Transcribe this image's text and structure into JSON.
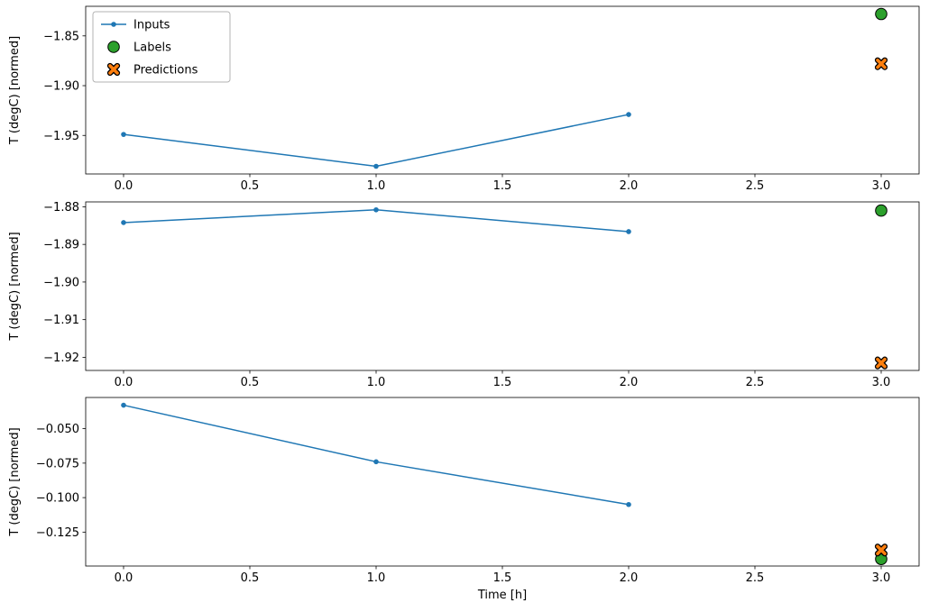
{
  "figure": {
    "background": "#ffffff",
    "xlabel": "Time [h]",
    "ylabel": "T (degC) [normed]"
  },
  "colors": {
    "inputs": "#1f77b4",
    "labels": "#2ca02c",
    "predictions": "#ff7f0e",
    "axes": "#000000",
    "legend_border": "#b3b3b3"
  },
  "legend": {
    "entries": [
      "Inputs",
      "Labels",
      "Predictions"
    ],
    "position": "upper left"
  },
  "chart_data": [
    {
      "type": "line",
      "title": "",
      "xlabel": "",
      "ylabel": "T (degC) [normed]",
      "xlim": [
        -0.15,
        3.15
      ],
      "ylim": [
        -1.9887,
        -1.8203
      ],
      "grid": false,
      "legend": true,
      "legend_loc": "upper left",
      "x_ticks": [
        {
          "value": 0.0,
          "label": "0.0"
        },
        {
          "value": 0.5,
          "label": "0.5"
        },
        {
          "value": 1.0,
          "label": "1.0"
        },
        {
          "value": 1.5,
          "label": "1.5"
        },
        {
          "value": 2.0,
          "label": "2.0"
        },
        {
          "value": 2.5,
          "label": "2.5"
        },
        {
          "value": 3.0,
          "label": "3.0"
        }
      ],
      "y_ticks": [
        {
          "value": -1.85,
          "label": "−1.85"
        },
        {
          "value": -1.9,
          "label": "−1.90"
        },
        {
          "value": -1.95,
          "label": "−1.95"
        }
      ],
      "series": [
        {
          "name": "Inputs",
          "style": "line",
          "marker": "dot",
          "color": "#1f77b4",
          "x": [
            0,
            1,
            2
          ],
          "y": [
            -1.949,
            -1.981,
            -1.929
          ]
        },
        {
          "name": "Labels",
          "style": "scatter",
          "marker": "circle",
          "color": "#2ca02c",
          "x": [
            3
          ],
          "y": [
            -1.828
          ]
        },
        {
          "name": "Predictions",
          "style": "scatter",
          "marker": "x",
          "color": "#ff7f0e",
          "x": [
            3
          ],
          "y": [
            -1.878
          ]
        }
      ]
    },
    {
      "type": "line",
      "title": "",
      "xlabel": "",
      "ylabel": "T (degC) [normed]",
      "xlim": [
        -0.15,
        3.15
      ],
      "ylim": [
        -1.9235,
        -1.8787
      ],
      "grid": false,
      "legend": false,
      "x_ticks": [
        {
          "value": 0.0,
          "label": "0.0"
        },
        {
          "value": 0.5,
          "label": "0.5"
        },
        {
          "value": 1.0,
          "label": "1.0"
        },
        {
          "value": 1.5,
          "label": "1.5"
        },
        {
          "value": 2.0,
          "label": "2.0"
        },
        {
          "value": 2.5,
          "label": "2.5"
        },
        {
          "value": 3.0,
          "label": "3.0"
        }
      ],
      "y_ticks": [
        {
          "value": -1.88,
          "label": "−1.88"
        },
        {
          "value": -1.89,
          "label": "−1.89"
        },
        {
          "value": -1.9,
          "label": "−1.90"
        },
        {
          "value": -1.91,
          "label": "−1.91"
        },
        {
          "value": -1.92,
          "label": "−1.92"
        }
      ],
      "series": [
        {
          "name": "Inputs",
          "style": "line",
          "marker": "dot",
          "color": "#1f77b4",
          "x": [
            0,
            1,
            2
          ],
          "y": [
            -1.8842,
            -1.8808,
            -1.8866
          ]
        },
        {
          "name": "Labels",
          "style": "scatter",
          "marker": "circle",
          "color": "#2ca02c",
          "x": [
            3
          ],
          "y": [
            -1.881
          ]
        },
        {
          "name": "Predictions",
          "style": "scatter",
          "marker": "x",
          "color": "#ff7f0e",
          "x": [
            3
          ],
          "y": [
            -1.9215
          ]
        }
      ]
    },
    {
      "type": "line",
      "title": "",
      "xlabel": "Time [h]",
      "ylabel": "T (degC) [normed]",
      "xlim": [
        -0.15,
        3.15
      ],
      "ylim": [
        -0.1496,
        -0.0274
      ],
      "grid": false,
      "legend": false,
      "x_ticks": [
        {
          "value": 0.0,
          "label": "0.0"
        },
        {
          "value": 0.5,
          "label": "0.5"
        },
        {
          "value": 1.0,
          "label": "1.0"
        },
        {
          "value": 1.5,
          "label": "1.5"
        },
        {
          "value": 2.0,
          "label": "2.0"
        },
        {
          "value": 2.5,
          "label": "2.5"
        },
        {
          "value": 3.0,
          "label": "3.0"
        }
      ],
      "y_ticks": [
        {
          "value": -0.05,
          "label": "−0.050"
        },
        {
          "value": -0.075,
          "label": "−0.075"
        },
        {
          "value": -0.1,
          "label": "−0.100"
        },
        {
          "value": -0.125,
          "label": "−0.125"
        }
      ],
      "series": [
        {
          "name": "Inputs",
          "style": "line",
          "marker": "dot",
          "color": "#1f77b4",
          "x": [
            0,
            1,
            2
          ],
          "y": [
            -0.033,
            -0.074,
            -0.105
          ]
        },
        {
          "name": "Labels",
          "style": "scatter",
          "marker": "circle",
          "color": "#2ca02c",
          "x": [
            3
          ],
          "y": [
            -0.1445
          ]
        },
        {
          "name": "Predictions",
          "style": "scatter",
          "marker": "x",
          "color": "#ff7f0e",
          "x": [
            3
          ],
          "y": [
            -0.138
          ]
        }
      ]
    }
  ]
}
